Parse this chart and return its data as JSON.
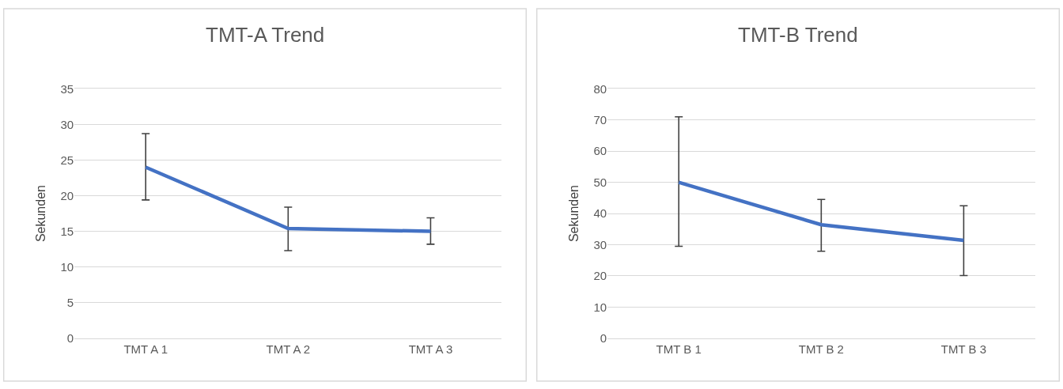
{
  "chart_data": [
    {
      "type": "line",
      "title": "TMT-A Trend",
      "ylabel": "Sekunden",
      "categories": [
        "TMT A 1",
        "TMT A 2",
        "TMT A 3"
      ],
      "series": [
        {
          "color": "#4472c4",
          "values": [
            24.0,
            15.4,
            15.0
          ],
          "errors": [
            [
              19.4,
              28.7
            ],
            [
              12.3,
              18.4
            ],
            [
              13.2,
              16.9
            ]
          ]
        }
      ],
      "ylim": [
        0,
        35
      ],
      "yticks": [
        0,
        5,
        10,
        15,
        20,
        25,
        30,
        35
      ],
      "grid": "y",
      "marker": "none",
      "line_style": "solid"
    },
    {
      "type": "line",
      "title": "TMT-B Trend",
      "ylabel": "Sekunden",
      "categories": [
        "TMT B 1",
        "TMT B 2",
        "TMT B 3"
      ],
      "series": [
        {
          "color": "#4472c4",
          "values": [
            50.0,
            36.4,
            31.4
          ],
          "errors": [
            [
              29.5,
              71.0
            ],
            [
              27.9,
              44.5
            ],
            [
              20.1,
              42.5
            ]
          ]
        }
      ],
      "ylim": [
        0,
        80
      ],
      "yticks": [
        0,
        10,
        20,
        30,
        40,
        50,
        60,
        70,
        80
      ],
      "grid": "y",
      "marker": "none",
      "line_style": "solid"
    }
  ]
}
